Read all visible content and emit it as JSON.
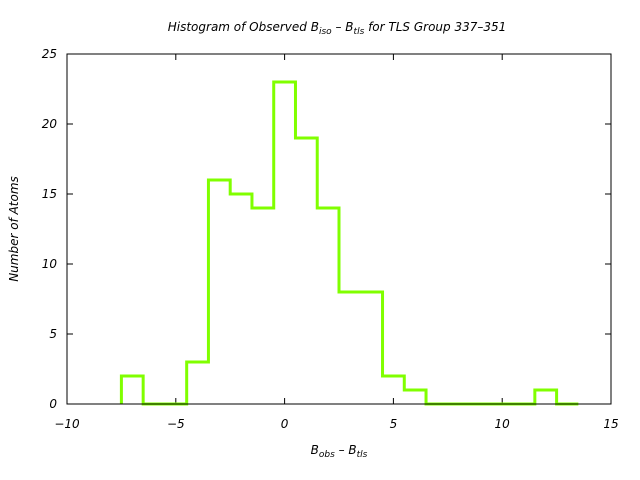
{
  "chart_data": {
    "type": "histogram",
    "title": {
      "prefix": "Histogram of Observed B",
      "sub1": "iso",
      "mid": " – B",
      "sub2": "tls",
      "suffix": " for TLS Group 337–351"
    },
    "xlabel": {
      "prefix": "B",
      "sub1": "obs",
      "mid": " – B",
      "sub2": "tls"
    },
    "ylabel": "Number of Atoms",
    "xlim": [
      -10,
      15
    ],
    "ylim": [
      0,
      25
    ],
    "x_ticks": [
      "−10",
      "−5",
      "0",
      "5",
      "10",
      "15"
    ],
    "x_tick_values": [
      -10,
      -5,
      0,
      5,
      10,
      15
    ],
    "y_ticks": [
      "0",
      "5",
      "10",
      "15",
      "20",
      "25"
    ],
    "y_tick_values": [
      0,
      5,
      10,
      15,
      20,
      25
    ],
    "bin_edges": [
      -7.5,
      -6.5,
      -5.5,
      -4.5,
      -3.5,
      -2.5,
      -1.5,
      -0.5,
      0.5,
      1.5,
      2.5,
      3.5,
      4.5,
      5.5,
      6.5,
      7.5,
      8.5,
      9.5,
      10.5,
      11.5,
      12.5,
      13.5
    ],
    "counts": [
      2,
      0,
      0,
      3,
      16,
      15,
      14,
      23,
      19,
      14,
      8,
      8,
      2,
      1,
      0,
      0,
      0,
      0,
      0,
      1,
      0
    ],
    "grid": false,
    "colors": {
      "series": "#80ff00",
      "axis": "#000000"
    }
  }
}
